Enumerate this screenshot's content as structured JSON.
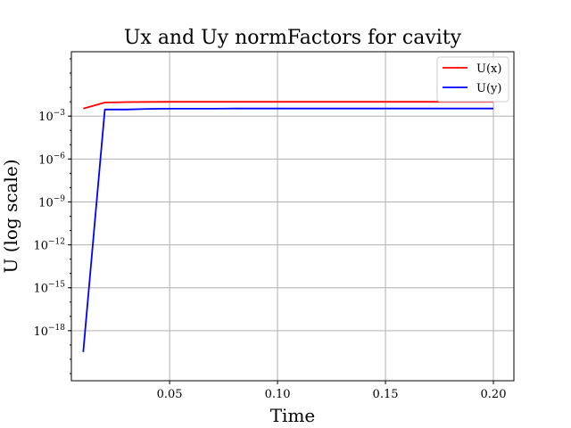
{
  "chart_data": {
    "type": "line",
    "title": "Ux and Uy normFactors for cavity",
    "xlabel": "Time",
    "ylabel": "U (log scale)",
    "yscale": "log",
    "xlim": [
      0.0045,
      0.2095
    ],
    "ylim_log10": [
      -21.5,
      1.5
    ],
    "x_ticks": [
      {
        "value": 0.05,
        "label": "0.05"
      },
      {
        "value": 0.1,
        "label": "0.10"
      },
      {
        "value": 0.15,
        "label": "0.15"
      },
      {
        "value": 0.2,
        "label": "0.20"
      }
    ],
    "y_ticks": [
      {
        "exp": -3,
        "base": "10",
        "sup": "−3"
      },
      {
        "exp": -6,
        "base": "10",
        "sup": "−6"
      },
      {
        "exp": -9,
        "base": "10",
        "sup": "−9"
      },
      {
        "exp": -12,
        "base": "10",
        "sup": "−12"
      },
      {
        "exp": -15,
        "base": "10",
        "sup": "−15"
      },
      {
        "exp": -18,
        "base": "10",
        "sup": "−18"
      }
    ],
    "grid": true,
    "legend_position": "top-right",
    "series": [
      {
        "name": "U(x)",
        "color": "#ff0000",
        "x": [
          0.01,
          0.02,
          0.03,
          0.04,
          0.05,
          0.06,
          0.07,
          0.08,
          0.09,
          0.1,
          0.11,
          0.12,
          0.13,
          0.14,
          0.15,
          0.16,
          0.17,
          0.18,
          0.19,
          0.2
        ],
        "y": [
          0.0034,
          0.0089,
          0.0095,
          0.0098,
          0.0099,
          0.01,
          0.01,
          0.01,
          0.01,
          0.01,
          0.01,
          0.01,
          0.01,
          0.01,
          0.01,
          0.01,
          0.01,
          0.01,
          0.01,
          0.01
        ]
      },
      {
        "name": "U(y)",
        "color": "#0000ff",
        "x": [
          0.01,
          0.02,
          0.03,
          0.04,
          0.05,
          0.06,
          0.07,
          0.08,
          0.09,
          0.1,
          0.11,
          0.12,
          0.13,
          0.14,
          0.15,
          0.16,
          0.17,
          0.18,
          0.19,
          0.2
        ],
        "y": [
          3.2e-20,
          0.0029,
          0.0029,
          0.0032,
          0.0033,
          0.0033,
          0.0033,
          0.0034,
          0.0034,
          0.0034,
          0.0034,
          0.0034,
          0.0034,
          0.0034,
          0.0034,
          0.0034,
          0.0034,
          0.0034,
          0.0034,
          0.0034
        ]
      }
    ]
  }
}
